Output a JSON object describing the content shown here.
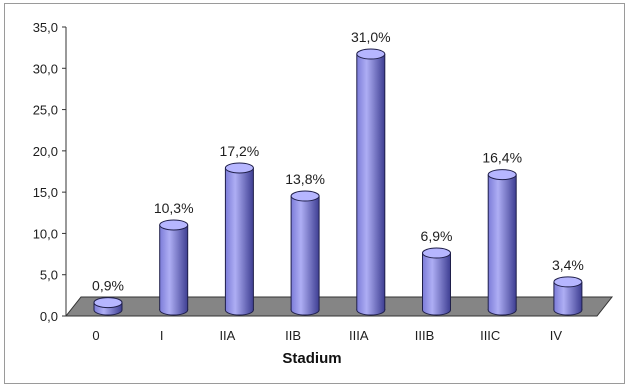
{
  "chart_data": {
    "type": "bar",
    "style": "3d-cylinder",
    "categories": [
      "0",
      "I",
      "IIA",
      "IIB",
      "IIIA",
      "IIIB",
      "IIIC",
      "IV"
    ],
    "values": [
      0.9,
      10.3,
      17.2,
      13.8,
      31.0,
      6.9,
      16.4,
      3.4
    ],
    "data_labels": [
      "0,9%",
      "10,3%",
      "17,2%",
      "13,8%",
      "31,0%",
      "6,9%",
      "16,4%",
      "3,4%"
    ],
    "y_ticks": [
      0,
      5,
      10,
      15,
      20,
      25,
      30,
      35
    ],
    "y_tick_labels": [
      "0,0",
      "5,0",
      "10,0",
      "15,0",
      "20,0",
      "25,0",
      "30,0",
      "35,0"
    ],
    "xlabel": "Stadium",
    "ylim": [
      0,
      35
    ],
    "grid": false,
    "legend": "none"
  },
  "colors": {
    "bar_light": "#aeaef4",
    "bar": "#7c7cd8",
    "bar_dark": "#3e3e92",
    "bar_top": "#b6b6ff",
    "floor": "#858585",
    "outline": "#1f1f4a",
    "frame": "#9a9a9a",
    "axis": "#333333"
  }
}
